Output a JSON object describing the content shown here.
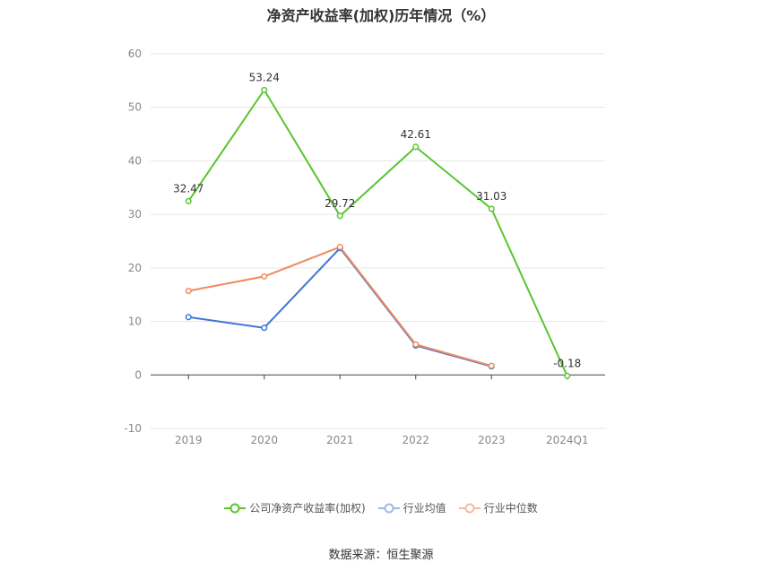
{
  "title": "净资产收益率(加权)历年情况（%）",
  "source": "数据来源：恒生聚源",
  "chart_data": {
    "type": "line",
    "categories": [
      "2019",
      "2020",
      "2021",
      "2022",
      "2023",
      "2024Q1"
    ],
    "ylim": [
      -10,
      60
    ],
    "yticks": [
      -10,
      0,
      10,
      20,
      30,
      40,
      50,
      60
    ],
    "grid": true,
    "legend_position": "bottom",
    "series": [
      {
        "name": "公司净资产收益率(加权)",
        "color": "#5ac531",
        "values": [
          32.47,
          53.24,
          29.72,
          42.61,
          31.03,
          -0.18
        ],
        "labels": [
          "32.47",
          "53.24",
          "29.72",
          "42.61",
          "31.03",
          "-0.18"
        ]
      },
      {
        "name": "行业均值",
        "color": "#3f76d6",
        "values": [
          10.8,
          8.8,
          23.7,
          5.5,
          1.6,
          null
        ]
      },
      {
        "name": "行业中位数",
        "color": "#ef8a5e",
        "values": [
          15.7,
          18.4,
          23.9,
          5.7,
          1.7,
          null
        ]
      }
    ]
  }
}
